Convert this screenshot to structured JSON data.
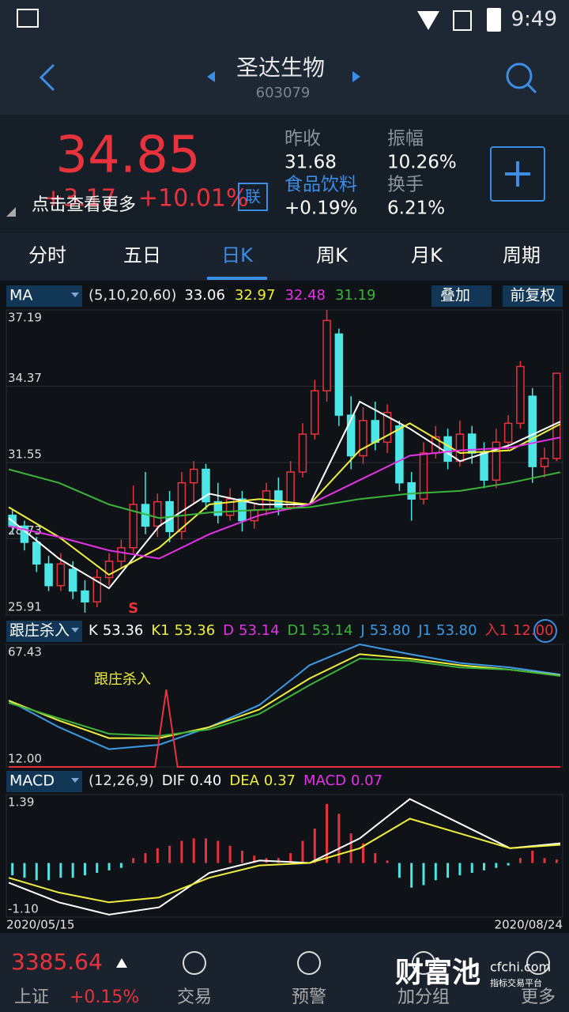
{
  "status": {
    "time": "9:49"
  },
  "header": {
    "title": "圣达生物",
    "code": "603079"
  },
  "quote": {
    "price": "34.85",
    "change": "+3.17",
    "pct": "+10.01%",
    "more": "点击查看更多",
    "link": "联",
    "items": [
      {
        "label": "昨收",
        "value": "31.68"
      },
      {
        "label": "振幅",
        "value": "10.26%"
      },
      {
        "label": "食品饮料",
        "value": "+0.19%"
      },
      {
        "label": "换手",
        "value": "6.21%"
      }
    ]
  },
  "tabs": [
    "分时",
    "五日",
    "日K",
    "周K",
    "月K",
    "周期"
  ],
  "chart_data": [
    {
      "type": "candlestick",
      "indicator": "MA",
      "params": "(5,10,20,60)",
      "buttons": [
        "叠加",
        "前复权"
      ],
      "signal": "S",
      "ylim": [
        25.91,
        37.19
      ],
      "yticks": [
        37.19,
        34.37,
        31.55,
        28.73,
        25.91
      ],
      "up_color": "#e8333d",
      "down_color": "#4de6e6",
      "candles": [
        [
          29.6,
          29.2,
          29.8,
          28.9
        ],
        [
          29.2,
          28.6,
          29.4,
          28.3
        ],
        [
          28.6,
          27.8,
          28.8,
          27.5
        ],
        [
          27.8,
          27.0,
          28.1,
          26.8
        ],
        [
          27.0,
          27.8,
          28.2,
          26.8
        ],
        [
          27.6,
          26.8,
          27.9,
          26.5
        ],
        [
          26.8,
          26.4,
          27.2,
          26.0
        ],
        [
          26.4,
          27.3,
          27.6,
          26.2
        ],
        [
          27.3,
          27.9,
          28.2,
          27.0
        ],
        [
          27.9,
          28.4,
          28.7,
          27.6
        ],
        [
          28.4,
          30.0,
          30.7,
          28.2
        ],
        [
          30.0,
          29.2,
          31.2,
          28.9
        ],
        [
          29.2,
          30.1,
          30.4,
          28.8
        ],
        [
          30.1,
          29.0,
          30.5,
          28.6
        ],
        [
          29.0,
          30.8,
          31.2,
          28.7
        ],
        [
          30.8,
          31.3,
          31.6,
          30.0
        ],
        [
          31.3,
          30.1,
          31.5,
          29.8
        ],
        [
          30.1,
          29.6,
          30.8,
          29.3
        ],
        [
          29.6,
          30.2,
          30.6,
          29.4
        ],
        [
          30.2,
          29.4,
          30.5,
          29.0
        ],
        [
          29.4,
          29.8,
          30.0,
          29.1
        ],
        [
          29.8,
          30.5,
          30.8,
          29.6
        ],
        [
          30.5,
          29.9,
          31.0,
          29.6
        ],
        [
          29.9,
          31.2,
          31.6,
          29.8
        ],
        [
          31.2,
          32.6,
          33.0,
          31.0
        ],
        [
          32.6,
          34.2,
          34.6,
          32.4
        ],
        [
          34.2,
          36.8,
          37.19,
          33.8
        ],
        [
          36.3,
          33.3,
          36.5,
          32.9
        ],
        [
          33.3,
          31.8,
          34.0,
          31.3
        ],
        [
          31.8,
          33.1,
          33.6,
          31.5
        ],
        [
          33.1,
          32.3,
          33.8,
          32.0
        ],
        [
          32.3,
          33.4,
          33.7,
          31.9
        ],
        [
          32.9,
          30.8,
          33.1,
          30.5
        ],
        [
          30.8,
          30.2,
          31.2,
          29.4
        ],
        [
          30.2,
          31.9,
          32.3,
          30.0
        ],
        [
          31.9,
          32.5,
          32.9,
          31.7
        ],
        [
          32.5,
          31.6,
          32.8,
          31.3
        ],
        [
          31.6,
          32.6,
          33.1,
          31.4
        ],
        [
          32.6,
          31.9,
          32.9,
          31.5
        ],
        [
          31.9,
          30.9,
          32.3,
          30.6
        ],
        [
          30.9,
          32.3,
          32.8,
          30.6
        ],
        [
          32.3,
          33.0,
          33.3,
          32.0
        ],
        [
          33.0,
          35.1,
          35.3,
          32.8
        ],
        [
          34.0,
          31.4,
          34.3,
          30.8
        ],
        [
          31.4,
          31.7,
          32.1,
          31.0
        ],
        [
          31.7,
          34.85,
          34.85,
          31.6
        ]
      ],
      "series": [
        {
          "color": "#ffffff",
          "values": [
            29.5,
            28.0,
            26.9,
            29.2,
            30.4,
            30.0,
            30.0,
            33.8,
            32.8,
            31.6,
            32.2,
            33.06
          ]
        },
        {
          "color": "#f0f03c",
          "values": [
            29.9,
            28.8,
            27.4,
            28.4,
            30.0,
            30.2,
            30.0,
            32.0,
            33.0,
            31.9,
            32.0,
            32.97
          ]
        },
        {
          "color": "#e632e6",
          "values": [
            29.2,
            28.8,
            28.3,
            28.0,
            28.9,
            29.6,
            30.0,
            30.9,
            31.8,
            32.0,
            32.1,
            32.48
          ]
        },
        {
          "color": "#3cb43c",
          "values": [
            31.3,
            30.8,
            30.0,
            29.5,
            29.7,
            29.8,
            29.9,
            30.2,
            30.4,
            30.5,
            30.8,
            31.19
          ]
        }
      ]
    },
    {
      "type": "line",
      "indicator": "跟庄杀入",
      "annotation": "跟庄杀入",
      "ylim": [
        12,
        67.43
      ],
      "yticks": [
        67.43,
        {
          "value": 12,
          "label": "12.00"
        }
      ],
      "legend": [
        {
          "label": "K",
          "value": "53.36",
          "color": "#ffffff"
        },
        {
          "label": "K1",
          "value": "53.36",
          "color": "#f0f03c"
        },
        {
          "label": "D",
          "value": "53.14",
          "color": "#e632e6"
        },
        {
          "label": "D1",
          "value": "53.14",
          "color": "#3cb43c"
        },
        {
          "label": "J",
          "value": "53.80",
          "color": "#3c9be6"
        },
        {
          "label": "J1",
          "value": "53.80",
          "color": "#3c9be6"
        },
        {
          "label": "入1",
          "value": "12.00",
          "color": "#e8333d"
        }
      ],
      "series": [
        {
          "color": "#3c9be6",
          "values": [
            42,
            30,
            20,
            22,
            30,
            40,
            58,
            67.43,
            63,
            59,
            57,
            53.8
          ]
        },
        {
          "color": "#f0f03c",
          "values": [
            42,
            33,
            25,
            25,
            30,
            38,
            52,
            63,
            61,
            58,
            56,
            53.36
          ]
        },
        {
          "color": "#3cb43c",
          "values": [
            41,
            34,
            27,
            26,
            29,
            36,
            49,
            61,
            60,
            57,
            56,
            53.14
          ]
        },
        {
          "color": "#e8333d",
          "values": [
            12,
            12,
            12,
            12,
            12,
            12,
            12,
            12,
            12,
            12,
            12,
            12,
            12,
            12,
            47,
            12,
            12,
            12,
            12,
            12,
            12,
            12,
            12,
            12,
            12,
            12,
            12,
            12,
            12,
            12,
            12,
            12,
            12,
            12,
            12,
            12,
            12,
            12,
            12,
            12,
            12,
            12,
            12,
            12,
            12,
            12,
            12,
            12,
            12,
            12
          ]
        }
      ]
    },
    {
      "type": "macd",
      "indicator": "MACD",
      "params": "(12,26,9)",
      "ylim": [
        -1.1,
        1.39
      ],
      "yticks": [
        1.39,
        {
          "value": -1.1,
          "label": "-1.10"
        }
      ],
      "x_labels": [
        "2020/05/15",
        "2020/08/24"
      ],
      "legend": [
        {
          "label": "DIF",
          "value": "0.40",
          "color": "#ffffff"
        },
        {
          "label": "DEA",
          "value": "0.37",
          "color": "#f0f03c"
        },
        {
          "label": "MACD",
          "value": "0.07",
          "color": "#e632e6"
        }
      ],
      "histogram": [
        -0.25,
        -0.3,
        -0.35,
        -0.35,
        -0.3,
        -0.3,
        -0.25,
        -0.2,
        -0.15,
        -0.1,
        0.1,
        0.2,
        0.3,
        0.35,
        0.45,
        0.5,
        0.5,
        0.45,
        0.35,
        0.25,
        0.15,
        0.1,
        0.1,
        0.2,
        0.45,
        0.7,
        1.2,
        1.0,
        0.6,
        0.4,
        0.2,
        0.05,
        -0.3,
        -0.5,
        -0.45,
        -0.35,
        -0.3,
        -0.25,
        -0.2,
        -0.15,
        -0.1,
        -0.05,
        0.1,
        0.25,
        0.1,
        0.07
      ],
      "series": [
        {
          "color": "#ffffff",
          "values": [
            -0.4,
            -0.8,
            -1.05,
            -0.9,
            -0.2,
            0.05,
            0.0,
            0.5,
            1.3,
            0.8,
            0.3,
            0.4
          ]
        },
        {
          "color": "#f0f03c",
          "values": [
            -0.3,
            -0.6,
            -0.8,
            -0.7,
            -0.3,
            -0.05,
            0.0,
            0.3,
            0.9,
            0.6,
            0.3,
            0.37
          ]
        }
      ]
    }
  ],
  "footer": {
    "index_value": "3385.64",
    "index_name": "上证",
    "index_pct": "+0.15%",
    "nav": [
      "交易",
      "预警",
      "加分组",
      "更多"
    ],
    "watermark": "财富池",
    "watermark_url": "cfchi.com",
    "watermark_sub": "指标交易平台"
  }
}
